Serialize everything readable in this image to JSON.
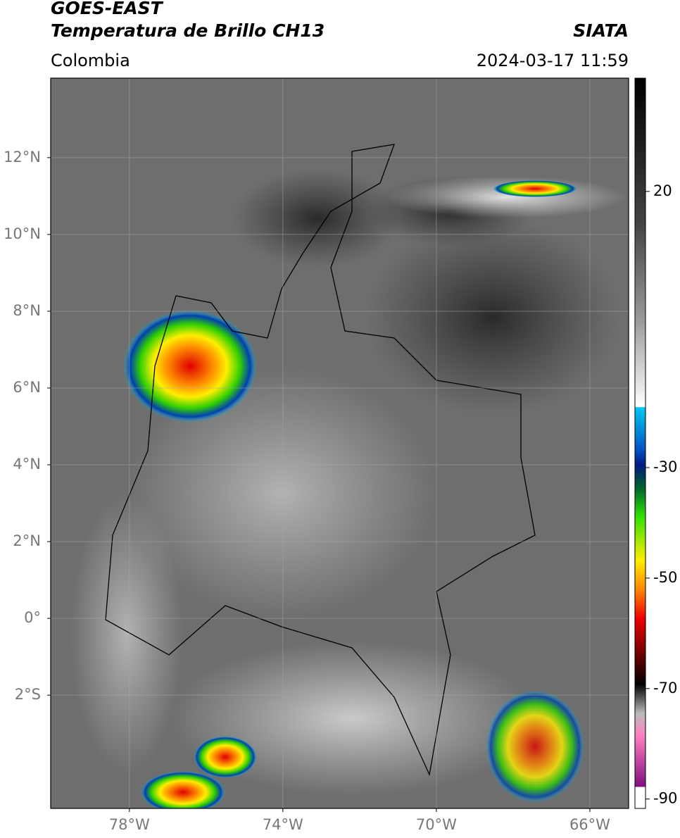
{
  "header": {
    "satellite": "GOES-EAST",
    "product": "Temperatura de Brillo CH13",
    "source": "SIATA",
    "region": "Colombia",
    "timestamp": "2024-03-17 11:59"
  },
  "map": {
    "lon_range": [
      -80.05,
      -64.99
    ],
    "lat_range": [
      14.07,
      -4.95
    ],
    "lon_ticks": [
      {
        "value": -78,
        "label": "78°W"
      },
      {
        "value": -74,
        "label": "74°W"
      },
      {
        "value": -70,
        "label": "70°W"
      },
      {
        "value": -66,
        "label": "66°W"
      }
    ],
    "lat_ticks": [
      {
        "value": 12,
        "label": "12°N"
      },
      {
        "value": 10,
        "label": "10°N"
      },
      {
        "value": 8,
        "label": "8°N"
      },
      {
        "value": 6,
        "label": "6°N"
      },
      {
        "value": 4,
        "label": "4°N"
      },
      {
        "value": 2,
        "label": "2°N"
      },
      {
        "value": 0,
        "label": "0°"
      },
      {
        "value": -2,
        "label": "2°S"
      }
    ]
  },
  "colorbar": {
    "range": [
      40.5,
      -91.7
    ],
    "ticks": [
      20,
      -30,
      -50,
      -70,
      -90
    ]
  }
}
